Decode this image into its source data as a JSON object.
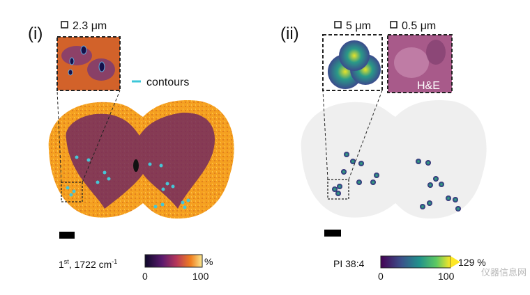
{
  "panel_i": {
    "label": "(i)",
    "inset_scale": "2.3 μm",
    "legend": "contours",
    "colorbar": {
      "title": [
        "1",
        "st",
        ", 1722 cm",
        "-1"
      ],
      "min_label": "0",
      "max_label": "100",
      "unit": "%"
    }
  },
  "panel_ii": {
    "label": "(ii)",
    "inset_scale": "5 μm",
    "he_scale": "0.5 μm",
    "he_label": "H&E",
    "colorbar": {
      "title": "PI 38:4",
      "min_label": "0",
      "max_label": "100",
      "over_label": "129 %"
    }
  },
  "watermark": "仪器信息网"
}
